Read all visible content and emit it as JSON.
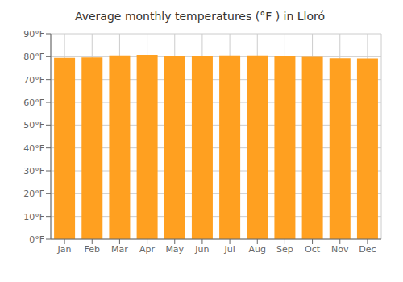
{
  "chart_data": {
    "type": "bar",
    "title": "Average monthly temperatures (°F ) in Lloró",
    "categories": [
      "Jan",
      "Feb",
      "Mar",
      "Apr",
      "May",
      "Jun",
      "Jul",
      "Aug",
      "Sep",
      "Oct",
      "Nov",
      "Dec"
    ],
    "values": [
      79.5,
      79.7,
      80.6,
      80.8,
      80.4,
      80.2,
      80.6,
      80.6,
      80.1,
      79.9,
      79.3,
      79.2
    ],
    "color": "#FFA020",
    "ylim": [
      0,
      90
    ],
    "yticks": [
      {
        "value": 0,
        "label": "0°F"
      },
      {
        "value": 10,
        "label": "10°F"
      },
      {
        "value": 20,
        "label": "20°F"
      },
      {
        "value": 30,
        "label": "30°F"
      },
      {
        "value": 40,
        "label": "40°F"
      },
      {
        "value": 50,
        "label": "50°F"
      },
      {
        "value": 60,
        "label": "60°F"
      },
      {
        "value": 70,
        "label": "70°F"
      },
      {
        "value": 80,
        "label": "80°F"
      },
      {
        "value": 90,
        "label": "90°F"
      }
    ],
    "grid": true
  }
}
